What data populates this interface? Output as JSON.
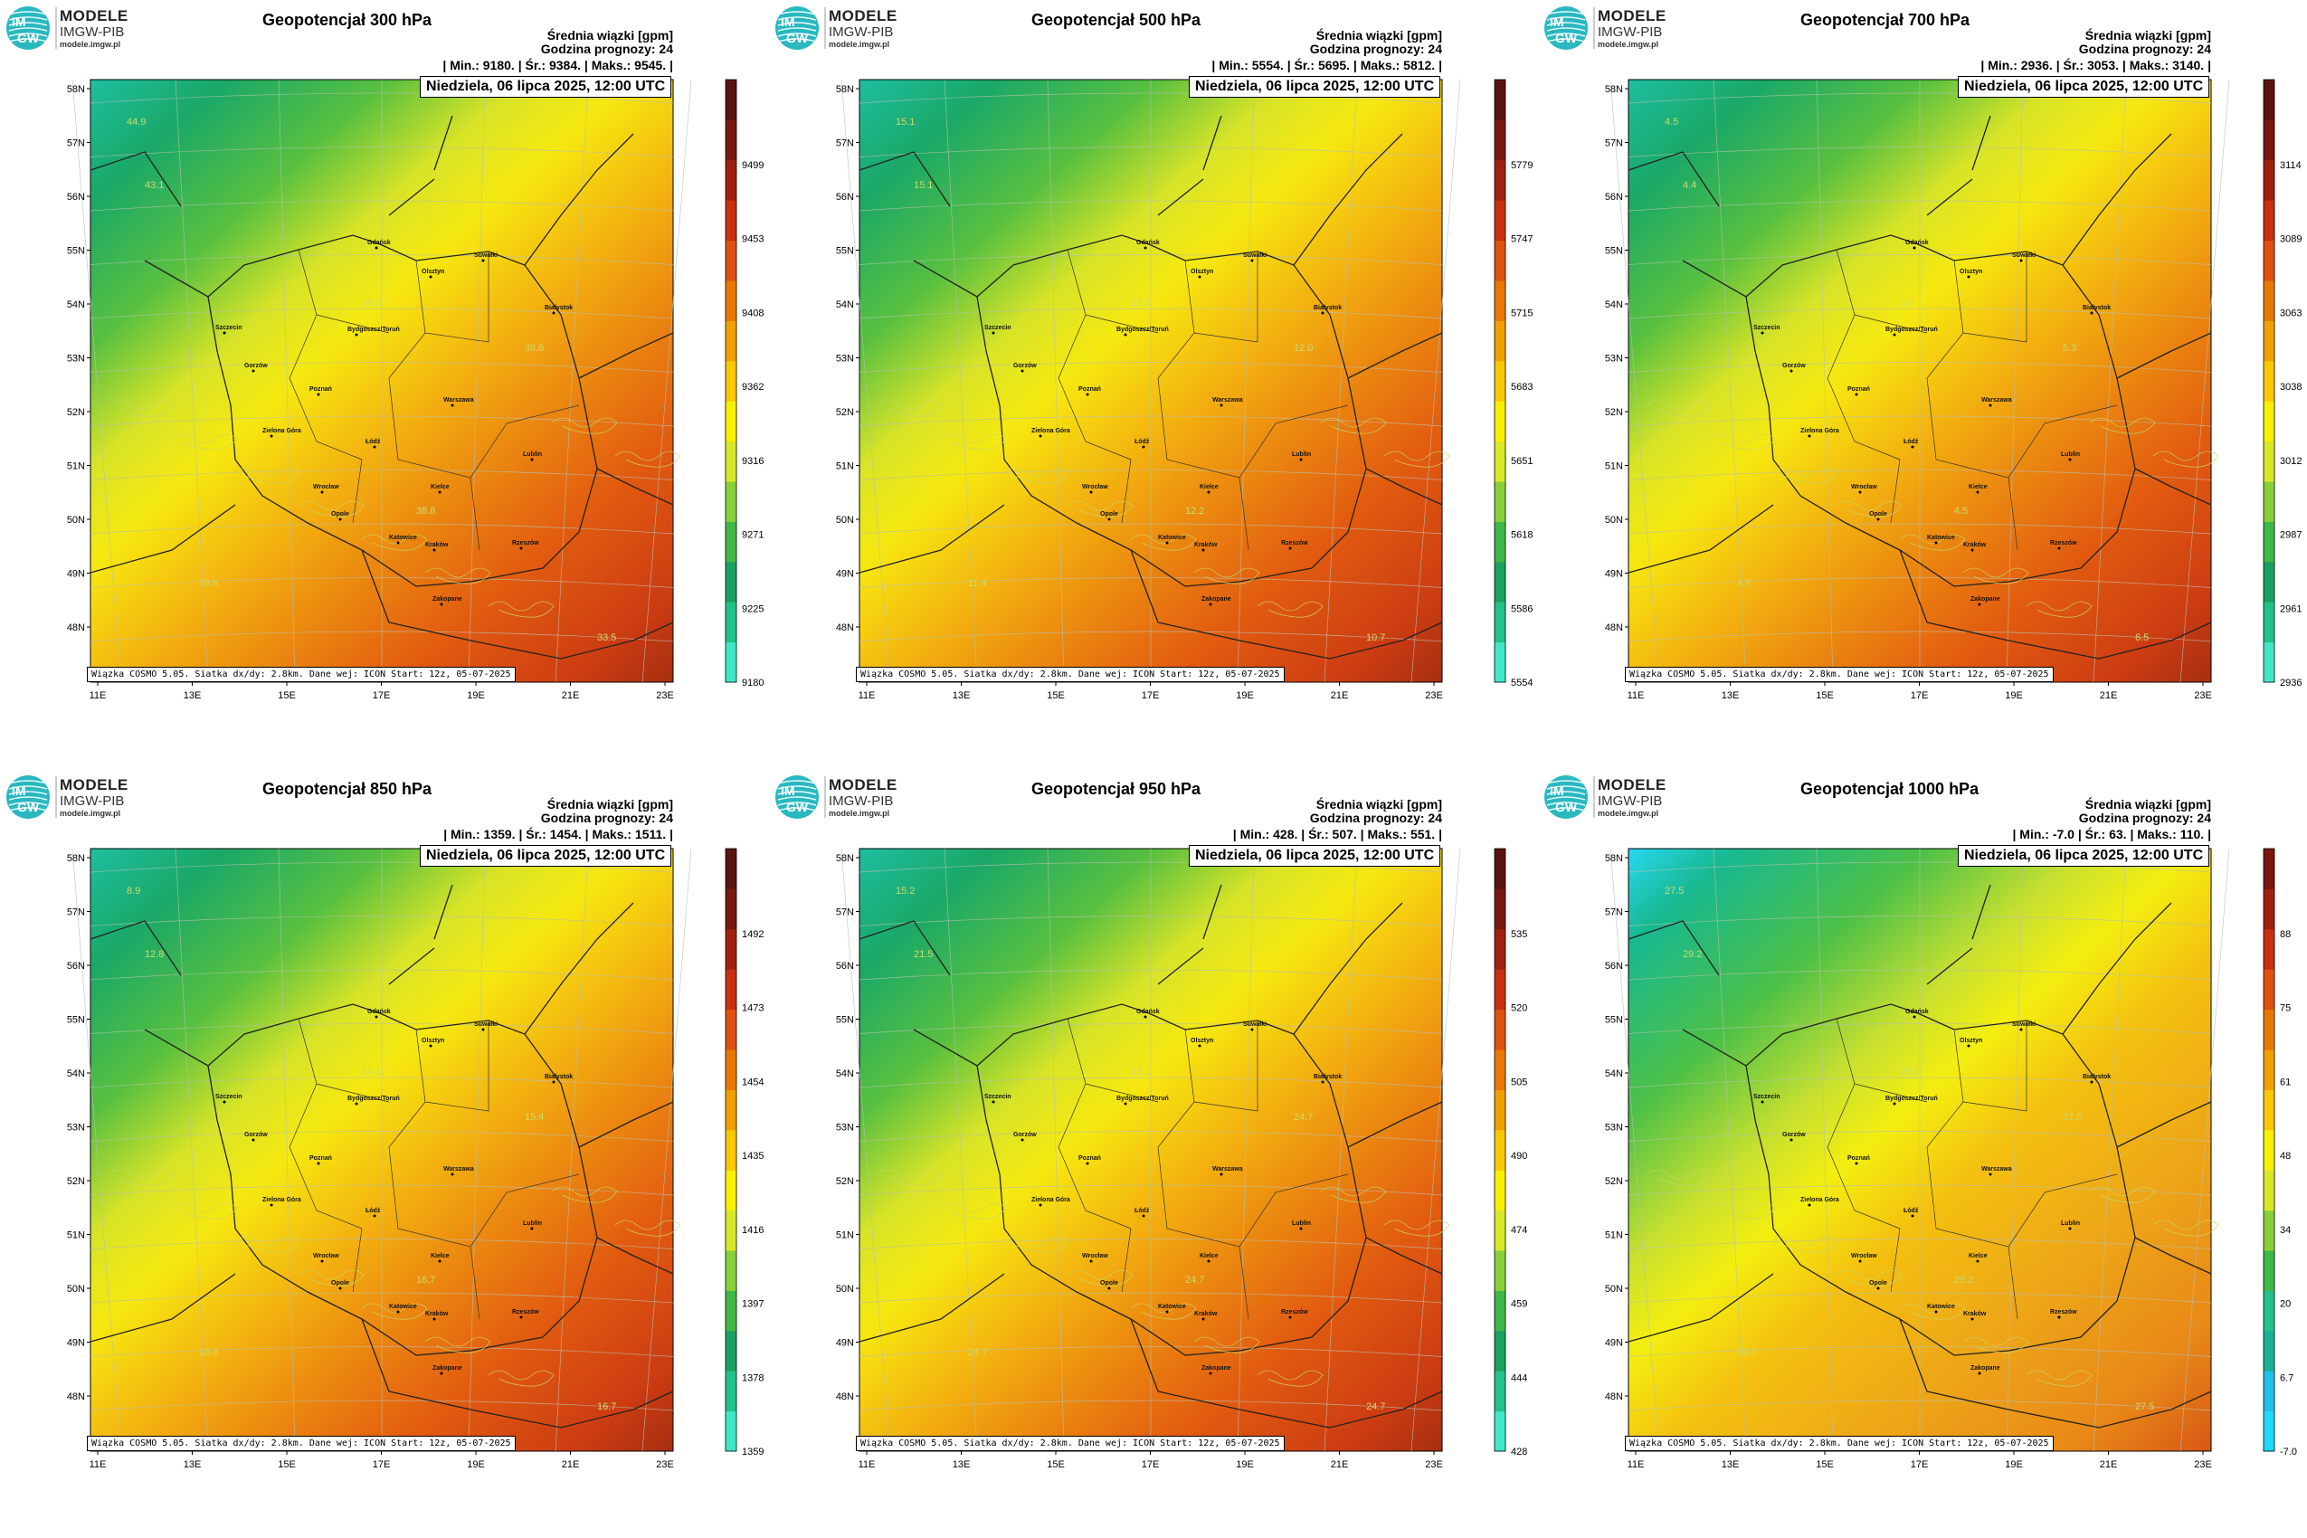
{
  "logo": {
    "title": "MODELE",
    "org": "IMGW-PIB",
    "url": "modele.imgw.pl",
    "badge_top": "IM",
    "badge_bottom": "GW"
  },
  "common": {
    "date": "Niedziela, 06 lipca 2025, 12:00 UTC",
    "mean_label": "Średnia wiązki [gpm]",
    "lead_label": "Godzina prognozy: 24",
    "footer": "Wiązka COSMO 5.05. Siatka dx/dy: 2.8km. Dane wej: ICON Start: 12z, 05-07-2025",
    "lat_labels": [
      "58N",
      "57N",
      "56N",
      "55N",
      "54N",
      "53N",
      "52N",
      "51N",
      "50N",
      "49N",
      "48N"
    ],
    "lon_labels": [
      "11E",
      "13E",
      "15E",
      "17E",
      "19E",
      "21E",
      "23E"
    ],
    "cities": [
      "Gdańsk",
      "Suwałki",
      "Olsztyn",
      "Białystok",
      "Szczecin",
      "Bydgoszcz/Toruń",
      "Gorzów",
      "Poznań",
      "Warszawa",
      "Zielona Góra",
      "Łódź",
      "Lublin",
      "Wrocław",
      "Kielce",
      "Opole",
      "Katowice",
      "Kraków",
      "Rzeszów",
      "Zakopane"
    ]
  },
  "panels": [
    {
      "title": "Geopotencjał 300 hPa",
      "stats": "| Min.:   9180. | Śr.:   9384. | Maks.:   9545. |",
      "colorbar": [
        "9499",
        "9453",
        "9408",
        "9362",
        "9316",
        "9271",
        "9225",
        "9180"
      ],
      "top_color": "#5a2418",
      "contours": [
        "44.9",
        "43.1",
        "39.2",
        "38.8",
        "38.8",
        "39.6",
        "33.5"
      ]
    },
    {
      "title": "Geopotencjał 500 hPa",
      "stats": "| Min.:   5554. | Śr.:   5695. | Maks.:   5812. |",
      "colorbar": [
        "5779",
        "5747",
        "5715",
        "5683",
        "5651",
        "5618",
        "5586",
        "5554"
      ],
      "top_color": "#5a2418",
      "contours": [
        "15.1",
        "15.1",
        "12.8",
        "12.0",
        "12.2",
        "11.4",
        "10.7"
      ]
    },
    {
      "title": "Geopotencjał 700 hPa",
      "stats": "| Min.:   2936. | Śr.:   3053. | Maks.:   3140. |",
      "colorbar": [
        "3114",
        "3089",
        "3063",
        "3038",
        "3012",
        "2987",
        "2961",
        "2936"
      ],
      "top_color": "#5a2418",
      "contours": [
        "4.5",
        "4.4",
        "3.9",
        "5.3",
        "4.5",
        "4.5",
        "6.5"
      ]
    },
    {
      "title": "Geopotencjał 850 hPa",
      "stats": "| Min.:   1359. | Śr.:   1454. | Maks.:   1511. |",
      "colorbar": [
        "1492",
        "1473",
        "1454",
        "1435",
        "1416",
        "1397",
        "1378",
        "1359"
      ],
      "top_color": "#5a2418",
      "contours": [
        "8.9",
        "12.8",
        "14.1",
        "15.4",
        "16.7",
        "18.6",
        "16.7"
      ]
    },
    {
      "title": "Geopotencjał 950 hPa",
      "stats": "| Min.:   428. | Śr.:   507. | Maks.:   551. |",
      "colorbar": [
        "535",
        "520",
        "505",
        "490",
        "474",
        "459",
        "444",
        "428"
      ],
      "top_color": "#5a2418",
      "contours": [
        "15.2",
        "21.5",
        "23.1",
        "24.7",
        "24.7",
        "24.7",
        "24.7"
      ]
    },
    {
      "title": "Geopotencjał 1000 hPa",
      "stats": "| Min.:   -7.0 | Śr.:   63. | Maks.:   110. |",
      "colorbar": [
        "88",
        "75",
        "61",
        "48",
        "34",
        "20",
        "6.7",
        "-7.0"
      ],
      "top_color": "#c0461a",
      "contours": [
        "27.5",
        "29.2",
        "29.2",
        "27.5",
        "29.2",
        "29.2",
        "27.5"
      ]
    }
  ]
}
